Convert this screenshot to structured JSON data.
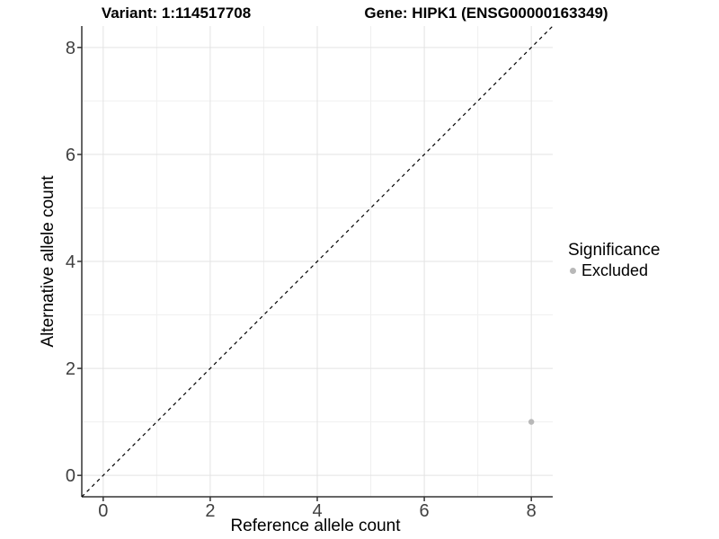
{
  "colors": {
    "background": "#ffffff",
    "grid_major": "#e3e3e3",
    "grid_minor": "#f0f0f0",
    "axis_line": "#333333",
    "tick_label": "#404040",
    "title_text": "#000000",
    "point": "#b8b8b8",
    "reference_line": "#000000"
  },
  "chart_data": {
    "type": "scatter",
    "title_left": "Variant: 1:114517708",
    "title_right": "Gene: HIPK1 (ENSG00000163349)",
    "xlabel": "Reference allele count",
    "ylabel": "Alternative allele count",
    "xlim": [
      -0.4,
      8.4
    ],
    "ylim": [
      -0.4,
      8.4
    ],
    "x_ticks": [
      0,
      2,
      4,
      6,
      8
    ],
    "y_ticks": [
      0,
      2,
      4,
      6,
      8
    ],
    "x_minor_ticks": [
      1,
      3,
      5,
      7
    ],
    "y_minor_ticks": [
      1,
      3,
      5,
      7
    ],
    "grid": true,
    "points": [
      {
        "x": 8,
        "y": 1,
        "series": "Excluded"
      }
    ],
    "reference_line": {
      "style": "dashed",
      "slope": 1,
      "intercept": 0
    },
    "legend": {
      "title": "Significance",
      "position": "right",
      "items": [
        {
          "label": "Excluded",
          "color": "#b8b8b8"
        }
      ]
    }
  }
}
